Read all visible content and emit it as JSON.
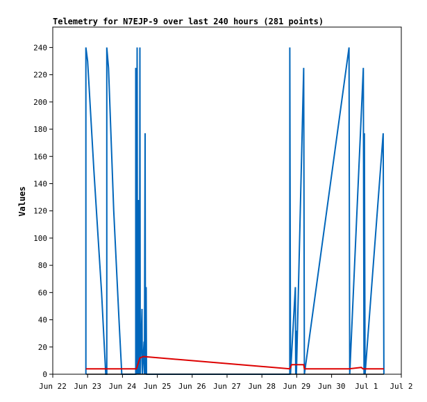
{
  "chart_data": {
    "type": "line",
    "title": "Telemetry for N7EJP-9 over last 240 hours (281 points)",
    "xlabel": "",
    "ylabel": "Values",
    "x_tick_labels": [
      "Jun 22",
      "Jun 23",
      "Jun 24",
      "Jun 25",
      "Jun 26",
      "Jun 27",
      "Jun 28",
      "Jun 29",
      "Jun 30",
      "Jul 1",
      "Jul 2"
    ],
    "y_ticks": [
      0,
      20,
      40,
      60,
      80,
      100,
      120,
      140,
      160,
      180,
      200,
      220,
      240
    ],
    "xlim": [
      0,
      10
    ],
    "ylim": [
      0,
      255
    ],
    "grid": false,
    "legend": "none",
    "series": [
      {
        "color": "#0066bb",
        "points": [
          [
            0.95,
            0
          ],
          [
            0.95,
            240
          ],
          [
            1.0,
            230
          ],
          [
            1.18,
            150
          ],
          [
            1.4,
            60
          ],
          [
            1.52,
            0
          ],
          [
            1.55,
            0
          ],
          [
            1.55,
            240
          ],
          [
            1.6,
            225
          ],
          [
            1.75,
            120
          ],
          [
            1.9,
            40
          ],
          [
            1.98,
            0
          ],
          [
            2.38,
            0
          ],
          [
            2.38,
            225
          ],
          [
            2.4,
            0
          ],
          [
            2.42,
            240
          ],
          [
            2.43,
            0
          ],
          [
            2.46,
            128
          ],
          [
            2.47,
            0
          ],
          [
            2.48,
            48
          ],
          [
            2.49,
            0
          ],
          [
            2.5,
            240
          ],
          [
            2.51,
            0
          ],
          [
            2.56,
            48
          ],
          [
            2.57,
            0
          ],
          [
            2.62,
            24
          ],
          [
            2.63,
            0
          ],
          [
            2.65,
            177
          ],
          [
            2.66,
            0
          ],
          [
            2.68,
            64
          ],
          [
            2.69,
            0
          ],
          [
            6.8,
            0
          ],
          [
            6.8,
            240
          ],
          [
            6.82,
            0
          ],
          [
            6.96,
            64
          ],
          [
            6.97,
            0
          ],
          [
            6.98,
            32
          ],
          [
            6.99,
            0
          ],
          [
            7.2,
            225
          ],
          [
            7.22,
            0
          ],
          [
            8.5,
            240
          ],
          [
            8.52,
            0
          ],
          [
            8.91,
            225
          ],
          [
            8.93,
            0
          ],
          [
            8.94,
            177
          ],
          [
            8.96,
            0
          ],
          [
            9.48,
            177
          ],
          [
            9.5,
            0
          ]
        ]
      },
      {
        "color": "#dd0000",
        "points": [
          [
            0.95,
            4
          ],
          [
            2.4,
            4
          ],
          [
            2.5,
            12
          ],
          [
            2.6,
            13
          ],
          [
            6.8,
            4
          ],
          [
            6.85,
            7
          ],
          [
            7.2,
            7
          ],
          [
            7.22,
            4
          ],
          [
            8.5,
            4
          ],
          [
            8.85,
            5
          ],
          [
            8.9,
            4
          ],
          [
            9.5,
            4
          ]
        ]
      },
      {
        "color": "#000000",
        "points": [
          [
            0.95,
            0
          ],
          [
            9.5,
            0
          ]
        ]
      }
    ]
  }
}
